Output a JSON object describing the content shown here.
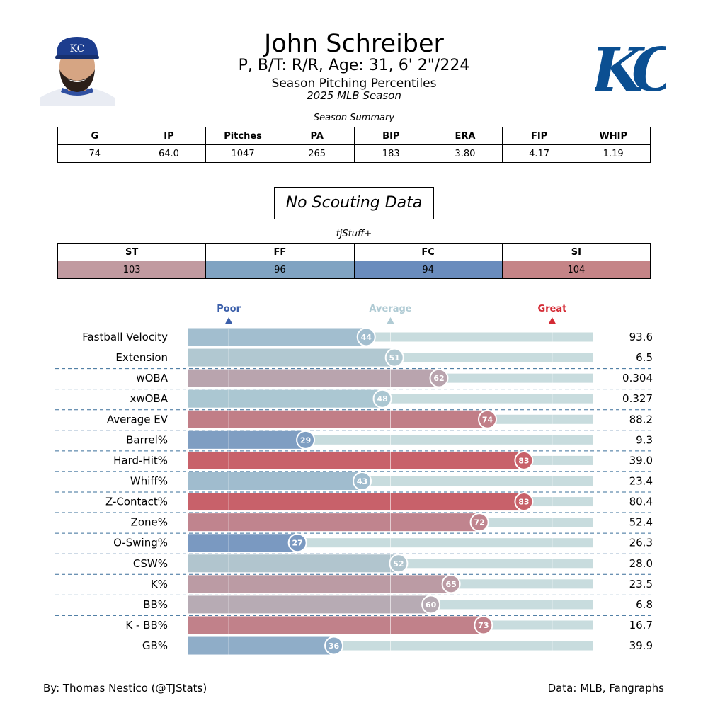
{
  "header": {
    "name": "John Schreiber",
    "info": "P, B/T: R/R, Age: 31, 6' 2\"/224",
    "subtitle": "Season Pitching Percentiles",
    "season": "2025 MLB Season",
    "team_logo_text": "KC",
    "cap_logo_text": "KC"
  },
  "summary": {
    "caption": "Season Summary",
    "headers": [
      "G",
      "IP",
      "Pitches",
      "PA",
      "BIP",
      "ERA",
      "FIP",
      "WHIP"
    ],
    "values": [
      "74",
      "64.0",
      "1047",
      "265",
      "183",
      "3.80",
      "4.17",
      "1.19"
    ]
  },
  "scouting": {
    "text": "No Scouting Data"
  },
  "tjstuff": {
    "caption": "tjStuff+",
    "pitches": [
      {
        "label": "ST",
        "value": "103",
        "color": "#c19aa0"
      },
      {
        "label": "FF",
        "value": "96",
        "color": "#80a3c2"
      },
      {
        "label": "FC",
        "value": "94",
        "color": "#6a8cbd"
      },
      {
        "label": "SI",
        "value": "104",
        "color": "#c58487"
      }
    ]
  },
  "chart_data": {
    "type": "bar",
    "orientation": "horizontal",
    "xlim": [
      0,
      100
    ],
    "reference_markers": [
      {
        "label": "Poor",
        "value": 10,
        "color": "#3b5faa"
      },
      {
        "label": "Average",
        "value": 50,
        "color": "#b0cbd4"
      },
      {
        "label": "Great",
        "value": 90,
        "color": "#d42a34"
      }
    ],
    "categories": [
      "Fastball Velocity",
      "Extension",
      "wOBA",
      "xwOBA",
      "Average EV",
      "Barrel%",
      "Hard-Hit%",
      "Whiff%",
      "Z-Contact%",
      "Zone%",
      "O-Swing%",
      "CSW%",
      "K%",
      "BB%",
      "K - BB%",
      "GB%"
    ],
    "percentiles": [
      44,
      51,
      62,
      48,
      74,
      29,
      83,
      43,
      83,
      72,
      27,
      52,
      65,
      60,
      73,
      36
    ],
    "stat_values": [
      "93.6",
      "6.5",
      "0.304",
      "0.327",
      "88.2",
      "9.3",
      "39.0",
      "23.4",
      "80.4",
      "52.4",
      "26.3",
      "28.0",
      "23.5",
      "6.8",
      "16.7",
      "39.9"
    ],
    "colors": {
      "track": "#c8dcde",
      "poor": "#3b5faa",
      "average": "#b0cbd4",
      "great": "#d42a34"
    }
  },
  "footer": {
    "left": "By: Thomas Nestico (@TJStats)",
    "right": "Data: MLB, Fangraphs"
  }
}
